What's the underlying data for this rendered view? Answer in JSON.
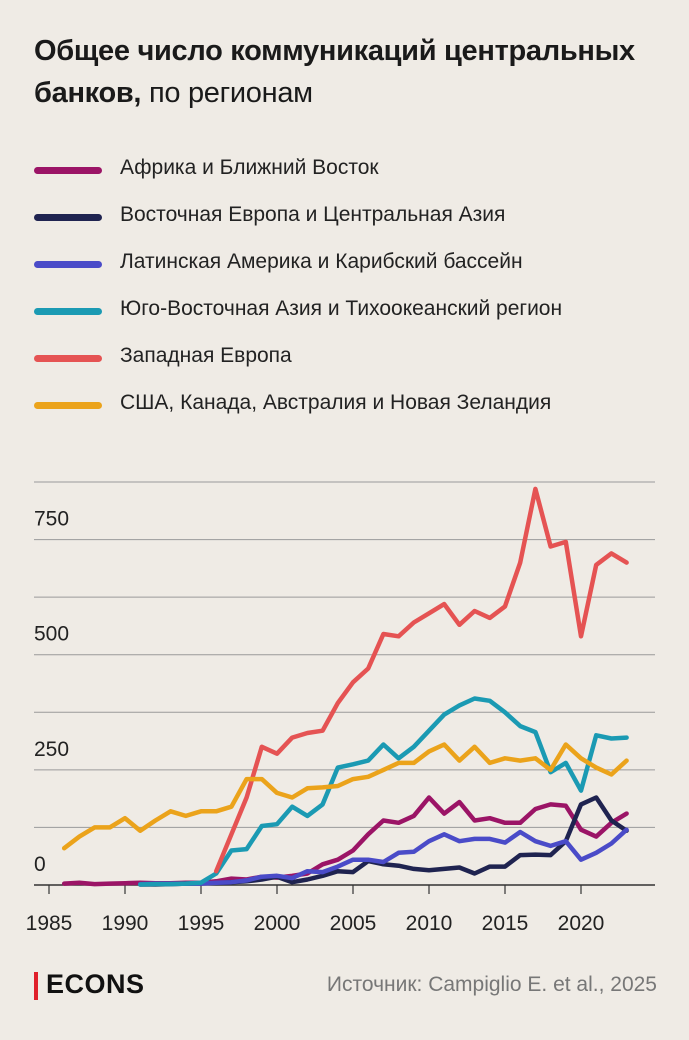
{
  "title": {
    "bold": "Общее число коммуникаций центральных банков,",
    "light": "по регионам"
  },
  "footer": {
    "logo": "ECONS",
    "source": "Источник: Campiglio E. et al., 2025"
  },
  "chart_data": {
    "type": "line",
    "xlim": [
      1985,
      2025
    ],
    "ylim": [
      0,
      875
    ],
    "x_ticks": [
      "1985",
      "1990",
      "1995",
      "2000",
      "2005",
      "2010",
      "2015",
      "2020"
    ],
    "y_ticks": [
      "0",
      "250",
      "500",
      "750"
    ],
    "y_tick_values": [
      0,
      250,
      500,
      750
    ],
    "gridlines": [
      0,
      125,
      250,
      375,
      500,
      625,
      750,
      875
    ],
    "series": [
      {
        "name": "Африка и Ближний Восток",
        "color": "#9b1466",
        "points": [
          [
            1986,
            3
          ],
          [
            1987,
            5
          ],
          [
            1988,
            2
          ],
          [
            1989,
            3
          ],
          [
            1990,
            4
          ],
          [
            1991,
            5
          ],
          [
            1992,
            4
          ],
          [
            1993,
            4
          ],
          [
            1994,
            5
          ],
          [
            1995,
            5
          ],
          [
            1996,
            8
          ],
          [
            1997,
            14
          ],
          [
            1998,
            12
          ],
          [
            1999,
            18
          ],
          [
            2000,
            16
          ],
          [
            2001,
            20
          ],
          [
            2002,
            25
          ],
          [
            2003,
            45
          ],
          [
            2004,
            55
          ],
          [
            2005,
            75
          ],
          [
            2006,
            110
          ],
          [
            2007,
            140
          ],
          [
            2008,
            135
          ],
          [
            2009,
            150
          ],
          [
            2010,
            190
          ],
          [
            2011,
            155
          ],
          [
            2012,
            180
          ],
          [
            2013,
            140
          ],
          [
            2014,
            145
          ],
          [
            2015,
            135
          ],
          [
            2016,
            135
          ],
          [
            2017,
            165
          ],
          [
            2018,
            175
          ],
          [
            2019,
            172
          ],
          [
            2020,
            120
          ],
          [
            2021,
            105
          ],
          [
            2022,
            135
          ],
          [
            2023,
            155
          ]
        ]
      },
      {
        "name": "Восточная Европа и Центральная Азия",
        "color": "#1f2350",
        "points": [
          [
            1991,
            1
          ],
          [
            1992,
            1
          ],
          [
            1993,
            2
          ],
          [
            1994,
            3
          ],
          [
            1995,
            4
          ],
          [
            1996,
            4
          ],
          [
            1997,
            6
          ],
          [
            1998,
            8
          ],
          [
            1999,
            12
          ],
          [
            2000,
            18
          ],
          [
            2001,
            6
          ],
          [
            2002,
            12
          ],
          [
            2003,
            20
          ],
          [
            2004,
            30
          ],
          [
            2005,
            28
          ],
          [
            2006,
            52
          ],
          [
            2007,
            45
          ],
          [
            2008,
            42
          ],
          [
            2009,
            35
          ],
          [
            2010,
            32
          ],
          [
            2011,
            35
          ],
          [
            2012,
            38
          ],
          [
            2013,
            25
          ],
          [
            2014,
            40
          ],
          [
            2015,
            40
          ],
          [
            2016,
            65
          ],
          [
            2017,
            66
          ],
          [
            2018,
            65
          ],
          [
            2019,
            95
          ],
          [
            2020,
            175
          ],
          [
            2021,
            190
          ],
          [
            2022,
            140
          ],
          [
            2023,
            118
          ]
        ]
      },
      {
        "name": "Латинская Америка и Карибский бассейн",
        "color": "#4a4bc8",
        "points": [
          [
            1991,
            2
          ],
          [
            1992,
            3
          ],
          [
            1993,
            3
          ],
          [
            1994,
            3
          ],
          [
            1995,
            3
          ],
          [
            1996,
            5
          ],
          [
            1997,
            6
          ],
          [
            1998,
            10
          ],
          [
            1999,
            18
          ],
          [
            2000,
            20
          ],
          [
            2001,
            15
          ],
          [
            2002,
            30
          ],
          [
            2003,
            28
          ],
          [
            2004,
            40
          ],
          [
            2005,
            55
          ],
          [
            2006,
            55
          ],
          [
            2007,
            50
          ],
          [
            2008,
            70
          ],
          [
            2009,
            72
          ],
          [
            2010,
            95
          ],
          [
            2011,
            110
          ],
          [
            2012,
            95
          ],
          [
            2013,
            100
          ],
          [
            2014,
            100
          ],
          [
            2015,
            92
          ],
          [
            2016,
            115
          ],
          [
            2017,
            95
          ],
          [
            2018,
            85
          ],
          [
            2019,
            95
          ],
          [
            2020,
            55
          ],
          [
            2021,
            70
          ],
          [
            2022,
            90
          ],
          [
            2023,
            120
          ]
        ]
      },
      {
        "name": "Юго-Восточная Азия и Тихоокеанский регион",
        "color": "#1b9ab3",
        "points": [
          [
            1991,
            1
          ],
          [
            1992,
            2
          ],
          [
            1993,
            2
          ],
          [
            1994,
            3
          ],
          [
            1995,
            5
          ],
          [
            1996,
            25
          ],
          [
            1997,
            75
          ],
          [
            1998,
            78
          ],
          [
            1999,
            128
          ],
          [
            2000,
            132
          ],
          [
            2001,
            170
          ],
          [
            2002,
            150
          ],
          [
            2003,
            175
          ],
          [
            2004,
            255
          ],
          [
            2005,
            262
          ],
          [
            2006,
            270
          ],
          [
            2007,
            305
          ],
          [
            2008,
            275
          ],
          [
            2009,
            300
          ],
          [
            2010,
            335
          ],
          [
            2011,
            370
          ],
          [
            2012,
            390
          ],
          [
            2013,
            405
          ],
          [
            2014,
            400
          ],
          [
            2015,
            375
          ],
          [
            2016,
            345
          ],
          [
            2017,
            332
          ],
          [
            2018,
            245
          ],
          [
            2019,
            265
          ],
          [
            2020,
            205
          ],
          [
            2021,
            325
          ],
          [
            2022,
            318
          ],
          [
            2023,
            320
          ]
        ]
      },
      {
        "name": "Западная Европа",
        "color": "#e55353",
        "points": [
          [
            1996,
            30
          ],
          [
            1997,
            110
          ],
          [
            1998,
            190
          ],
          [
            1999,
            300
          ],
          [
            2000,
            285
          ],
          [
            2001,
            320
          ],
          [
            2002,
            330
          ],
          [
            2003,
            335
          ],
          [
            2004,
            395
          ],
          [
            2005,
            440
          ],
          [
            2006,
            470
          ],
          [
            2007,
            545
          ],
          [
            2008,
            540
          ],
          [
            2009,
            570
          ],
          [
            2010,
            590
          ],
          [
            2011,
            610
          ],
          [
            2012,
            565
          ],
          [
            2013,
            595
          ],
          [
            2014,
            580
          ],
          [
            2015,
            605
          ],
          [
            2016,
            700
          ],
          [
            2017,
            860
          ],
          [
            2018,
            735
          ],
          [
            2019,
            745
          ],
          [
            2020,
            540
          ],
          [
            2021,
            695
          ],
          [
            2022,
            720
          ],
          [
            2023,
            700
          ]
        ]
      },
      {
        "name": "США, Канада, Австралия и Новая Зеландия",
        "color": "#eba31b",
        "points": [
          [
            1986,
            80
          ],
          [
            1987,
            105
          ],
          [
            1988,
            125
          ],
          [
            1989,
            125
          ],
          [
            1990,
            145
          ],
          [
            1991,
            118
          ],
          [
            1992,
            140
          ],
          [
            1993,
            160
          ],
          [
            1994,
            150
          ],
          [
            1995,
            160
          ],
          [
            1996,
            160
          ],
          [
            1997,
            170
          ],
          [
            1998,
            230
          ],
          [
            1999,
            230
          ],
          [
            2000,
            200
          ],
          [
            2001,
            190
          ],
          [
            2002,
            210
          ],
          [
            2003,
            212
          ],
          [
            2004,
            215
          ],
          [
            2005,
            230
          ],
          [
            2006,
            235
          ],
          [
            2007,
            250
          ],
          [
            2008,
            265
          ],
          [
            2009,
            265
          ],
          [
            2010,
            290
          ],
          [
            2011,
            305
          ],
          [
            2012,
            270
          ],
          [
            2013,
            300
          ],
          [
            2014,
            265
          ],
          [
            2015,
            275
          ],
          [
            2016,
            270
          ],
          [
            2017,
            275
          ],
          [
            2018,
            250
          ],
          [
            2019,
            305
          ],
          [
            2020,
            275
          ],
          [
            2021,
            255
          ],
          [
            2022,
            240
          ],
          [
            2023,
            270
          ]
        ]
      }
    ]
  }
}
